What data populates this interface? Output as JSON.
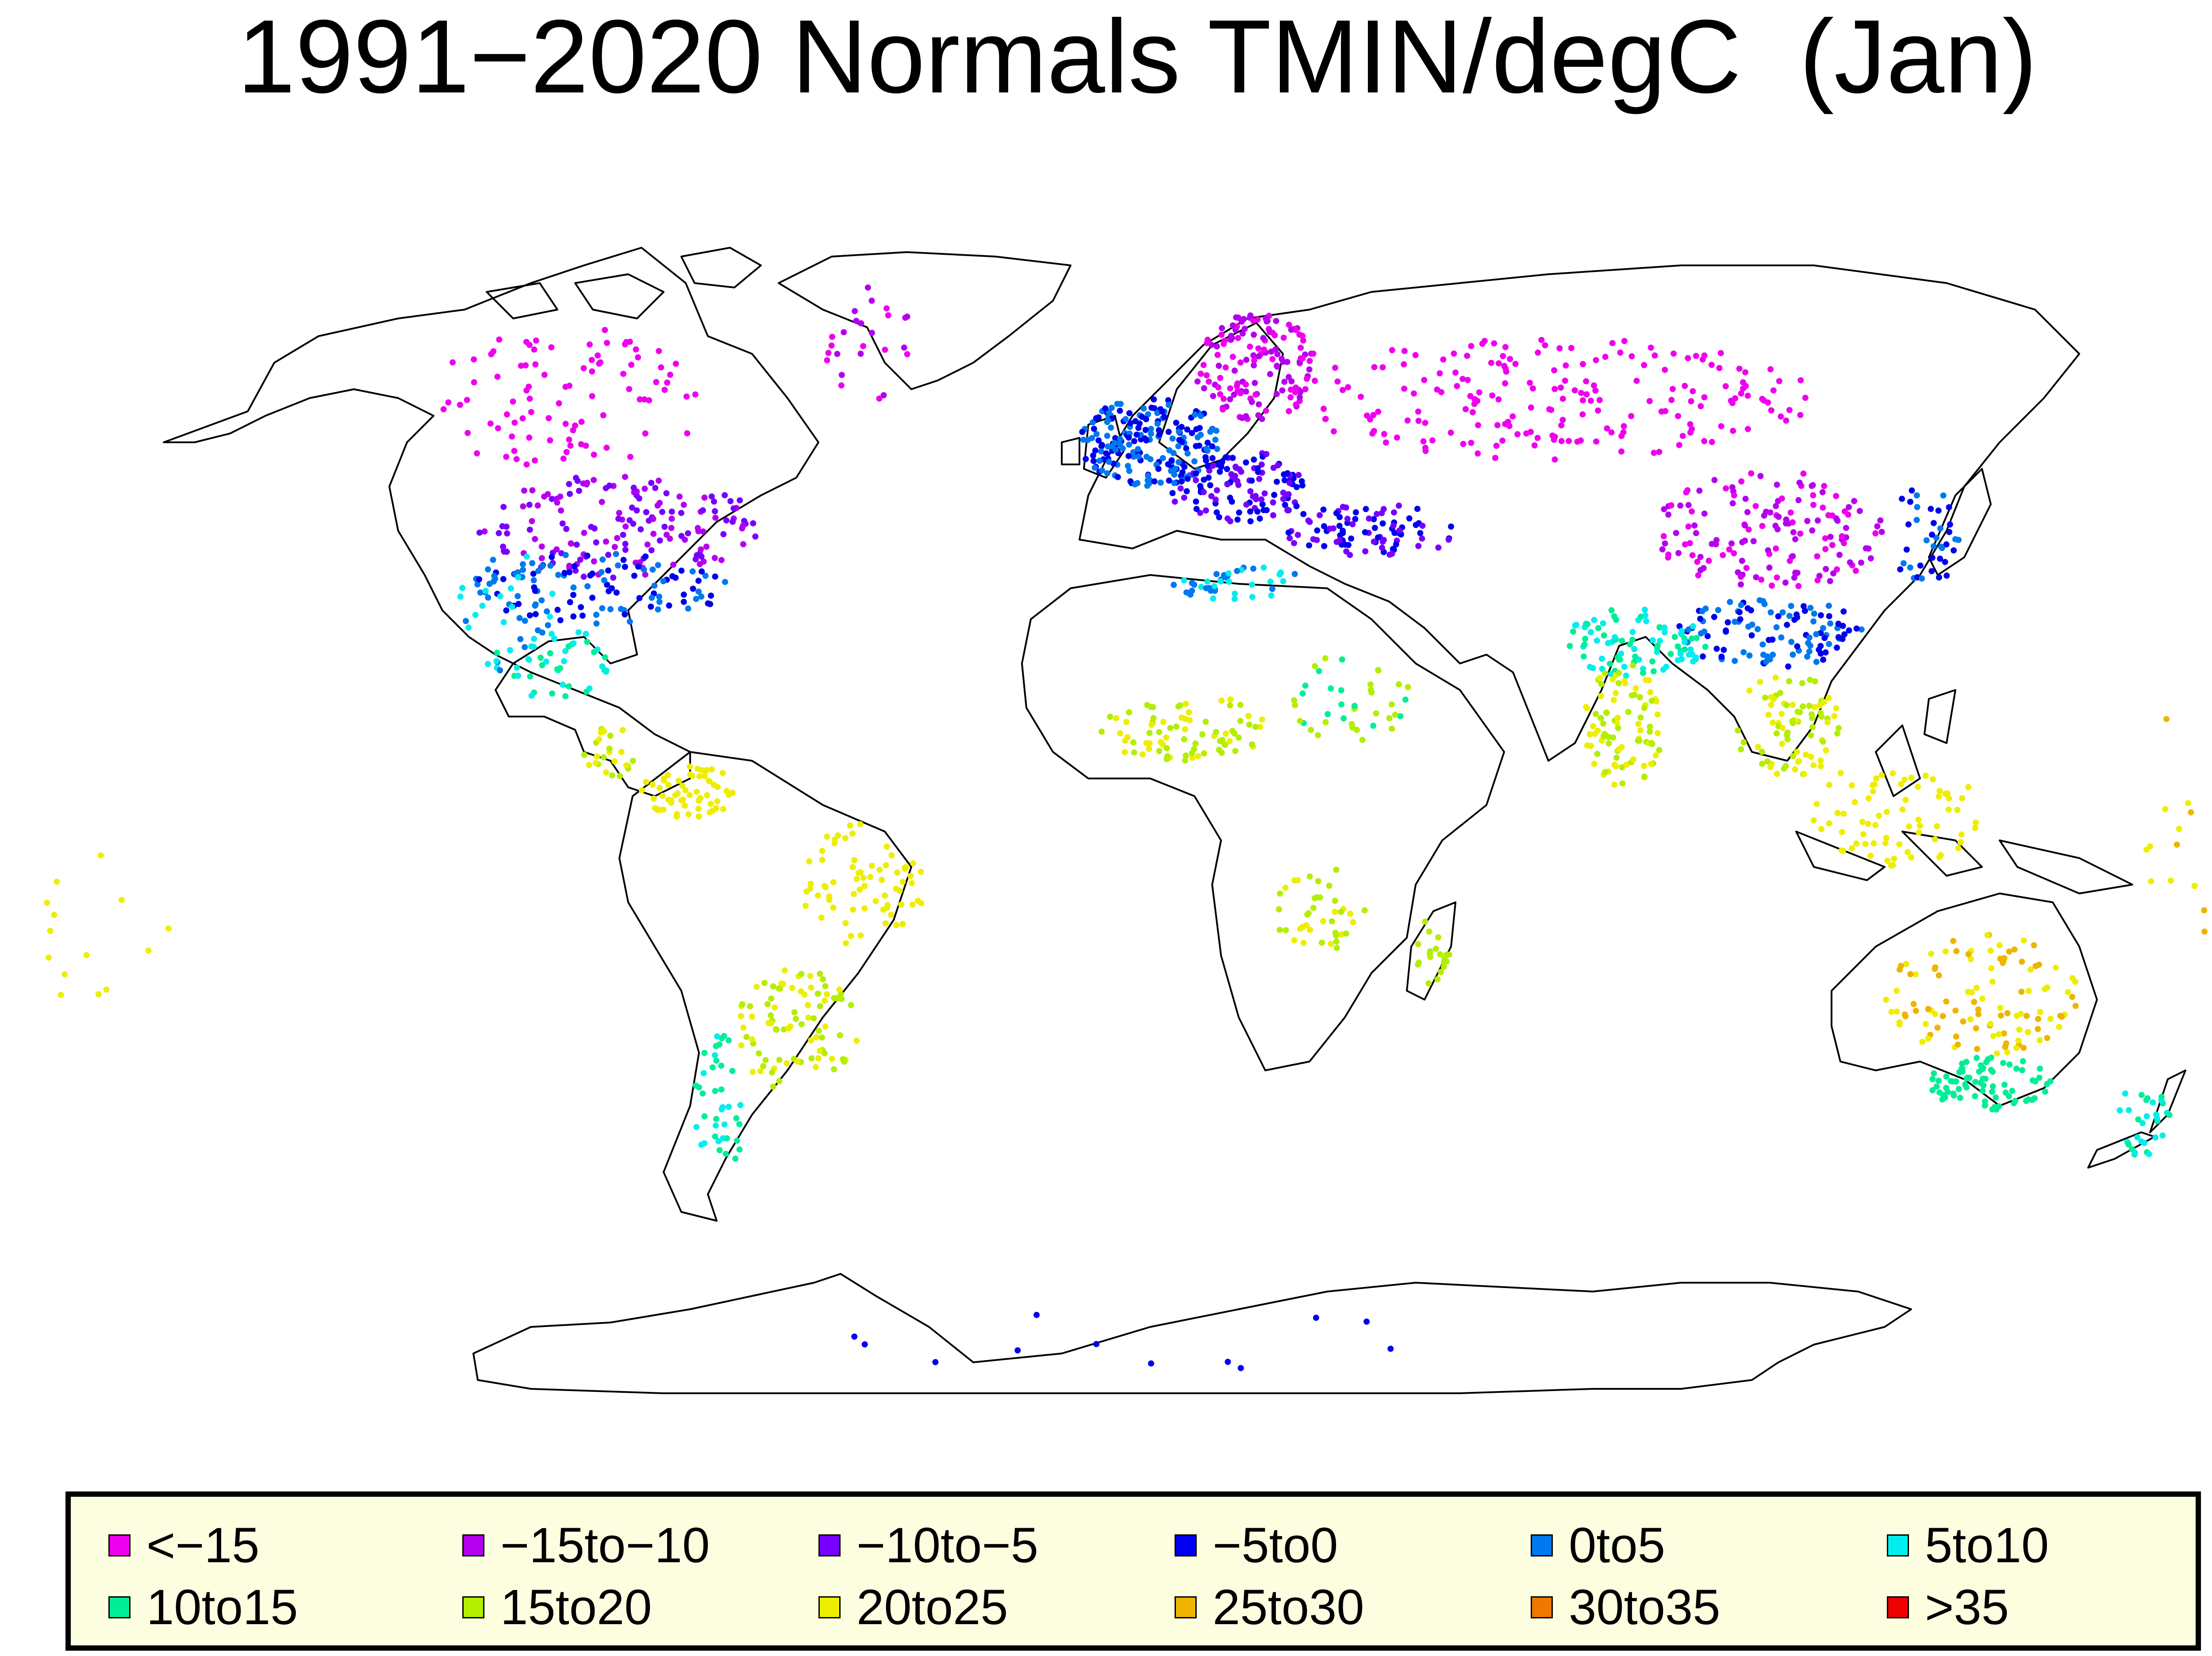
{
  "title": "1991−2020 Normals TMIN/degC  (Jan)",
  "legend": {
    "items": [
      {
        "label": "<−15",
        "color": "#ee00ee"
      },
      {
        "label": "−15to−10",
        "color": "#b400ee"
      },
      {
        "label": "−10to−5",
        "color": "#7800ff"
      },
      {
        "label": "−5to0",
        "color": "#0000ee"
      },
      {
        "label": "0to5",
        "color": "#0078ee"
      },
      {
        "label": "5to10",
        "color": "#00eeee"
      },
      {
        "label": "10to15",
        "color": "#00ee96"
      },
      {
        "label": "15to20",
        "color": "#b4ee00"
      },
      {
        "label": "20to25",
        "color": "#eeee00"
      },
      {
        "label": "25to30",
        "color": "#eeb400"
      },
      {
        "label": "30to35",
        "color": "#ee7800"
      },
      {
        "label": ">35",
        "color": "#ee0000"
      }
    ]
  }
}
